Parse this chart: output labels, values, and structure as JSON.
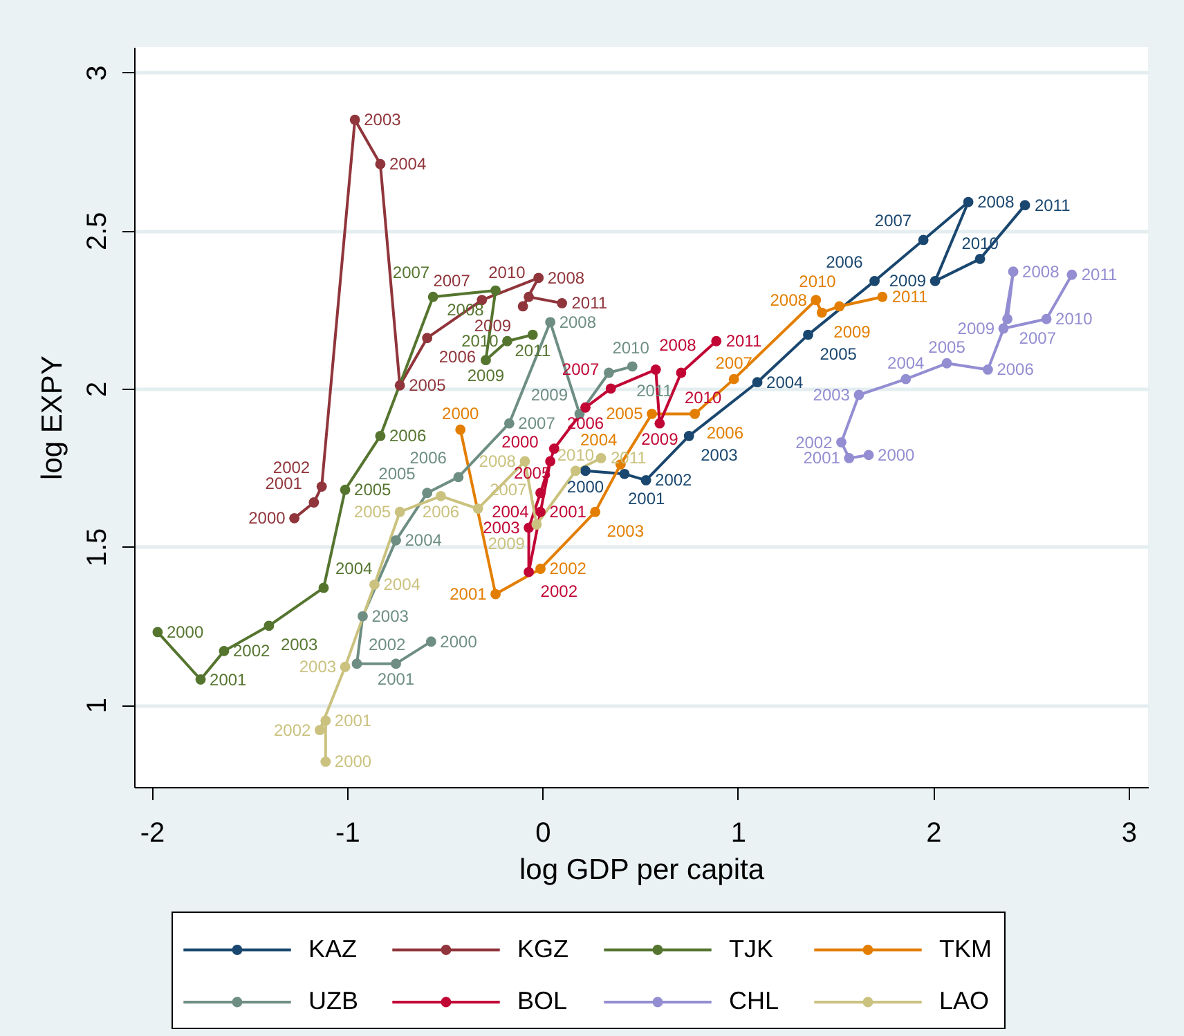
{
  "chart_data": {
    "type": "line",
    "xlabel": "log GDP per capita",
    "ylabel": "log EXPY",
    "xlim": [
      -2.09,
      3.1
    ],
    "ylim": [
      0.74,
      3.08
    ],
    "xticks": [
      -2,
      -1,
      0,
      1,
      2,
      3
    ],
    "yticks": [
      1,
      1.5,
      2,
      2.5,
      3
    ],
    "grid": "y",
    "legend": "bottom",
    "marker": "circle",
    "line_style": "solid",
    "series": [
      {
        "name": "KAZ",
        "color": "#1a476f",
        "x": [
          0.22,
          0.42,
          0.53,
          0.75,
          1.1,
          1.36,
          1.7,
          1.95,
          2.18,
          2.01,
          2.24,
          2.47
        ],
        "values": [
          1.74,
          1.73,
          1.71,
          1.85,
          2.02,
          2.17,
          2.34,
          2.47,
          2.59,
          2.34,
          2.41,
          2.58
        ]
      },
      {
        "name": "KGZ",
        "color": "#90353b",
        "x": [
          -1.27,
          -1.17,
          -1.13,
          -0.96,
          -0.83,
          -0.73,
          -0.59,
          -0.31,
          -0.02,
          -0.1,
          -0.07,
          0.1
        ],
        "values": [
          1.59,
          1.64,
          1.69,
          2.85,
          2.71,
          2.01,
          2.16,
          2.28,
          2.35,
          2.26,
          2.29,
          2.27
        ]
      },
      {
        "name": "TJK",
        "color": "#55752f",
        "x": [
          -1.97,
          -1.75,
          -1.63,
          -1.4,
          -1.12,
          -1.01,
          -0.83,
          -0.56,
          -0.24,
          -0.29,
          -0.18,
          -0.05
        ],
        "values": [
          1.23,
          1.08,
          1.17,
          1.25,
          1.37,
          1.68,
          1.85,
          2.29,
          2.31,
          2.09,
          2.15,
          2.17
        ]
      },
      {
        "name": "TKM",
        "color": "#e37e00",
        "x": [
          -0.42,
          -0.24,
          -0.01,
          0.27,
          0.4,
          0.56,
          0.78,
          0.98,
          1.4,
          1.43,
          1.52,
          1.74
        ],
        "values": [
          1.87,
          1.35,
          1.43,
          1.61,
          1.76,
          1.92,
          1.92,
          2.03,
          2.28,
          2.24,
          2.26,
          2.29
        ]
      },
      {
        "name": "UZB",
        "color": "#6e8e84",
        "x": [
          -0.57,
          -0.75,
          -0.95,
          -0.92,
          -0.75,
          -0.59,
          -0.43,
          -0.17,
          0.04,
          0.19,
          0.34,
          0.46
        ],
        "values": [
          1.2,
          1.13,
          1.13,
          1.28,
          1.52,
          1.67,
          1.72,
          1.89,
          2.21,
          1.92,
          2.05,
          2.07
        ]
      },
      {
        "name": "BOL",
        "color": "#c10534",
        "x": [
          0.04,
          -0.01,
          -0.07,
          -0.07,
          -0.01,
          0.06,
          0.22,
          0.35,
          0.58,
          0.6,
          0.71,
          0.89
        ],
        "values": [
          1.77,
          1.61,
          1.42,
          1.56,
          1.67,
          1.81,
          1.94,
          2.0,
          2.06,
          1.89,
          2.05,
          2.15
        ]
      },
      {
        "name": "CHL",
        "color": "#938dd2",
        "x": [
          1.67,
          1.57,
          1.53,
          1.62,
          1.86,
          2.07,
          2.28,
          2.38,
          2.41,
          2.36,
          2.58,
          2.71
        ],
        "values": [
          1.79,
          1.78,
          1.83,
          1.98,
          2.03,
          2.08,
          2.06,
          2.22,
          2.37,
          2.19,
          2.22,
          2.36
        ]
      },
      {
        "name": "LAO",
        "color": "#cac27e",
        "x": [
          -1.11,
          -1.11,
          -1.14,
          -1.01,
          -0.86,
          -0.73,
          -0.52,
          -0.33,
          -0.09,
          -0.03,
          0.17,
          0.3
        ],
        "values": [
          0.82,
          0.95,
          0.92,
          1.12,
          1.38,
          1.61,
          1.66,
          1.62,
          1.77,
          1.57,
          1.74,
          1.78
        ]
      }
    ],
    "annotations": [
      {
        "text": "2000",
        "x": 0.22,
        "y": 1.74
      },
      {
        "text": "2001",
        "x": 0.42,
        "y": 1.73
      },
      {
        "text": "2002",
        "x": 0.53,
        "y": 1.71
      },
      {
        "text": "2003",
        "x": 0.75,
        "y": 1.85
      },
      {
        "text": "2004",
        "x": 1.1,
        "y": 2.02
      },
      {
        "text": "2005",
        "x": 1.36,
        "y": 2.17
      },
      {
        "text": "2006",
        "x": 1.7,
        "y": 2.34
      },
      {
        "text": "2007",
        "x": 1.95,
        "y": 2.47
      },
      {
        "text": "2008",
        "x": 2.18,
        "y": 2.59
      },
      {
        "text": "2009",
        "x": 2.01,
        "y": 2.34
      },
      {
        "text": "2010",
        "x": 2.24,
        "y": 2.41
      },
      {
        "text": "2011",
        "x": 2.47,
        "y": 2.58
      },
      {
        "text": "2000",
        "x": -1.27,
        "y": 1.59
      },
      {
        "text": "2001",
        "x": -1.17,
        "y": 1.64
      },
      {
        "text": "2002",
        "x": -1.13,
        "y": 1.69
      },
      {
        "text": "2003",
        "x": -0.96,
        "y": 2.85
      },
      {
        "text": "2004",
        "x": -0.83,
        "y": 2.71
      },
      {
        "text": "2005",
        "x": -0.73,
        "y": 2.01
      },
      {
        "text": "2006",
        "x": -0.59,
        "y": 2.16
      },
      {
        "text": "2007",
        "x": -0.31,
        "y": 2.28
      },
      {
        "text": "2008",
        "x": -0.02,
        "y": 2.35
      },
      {
        "text": "2009",
        "x": -0.1,
        "y": 2.26
      },
      {
        "text": "2010",
        "x": -0.07,
        "y": 2.29
      },
      {
        "text": "2011",
        "x": 0.1,
        "y": 2.27
      },
      {
        "text": "2000",
        "x": -1.97,
        "y": 1.23
      },
      {
        "text": "2001",
        "x": -1.75,
        "y": 1.08
      },
      {
        "text": "2002",
        "x": -1.63,
        "y": 1.17
      },
      {
        "text": "2003",
        "x": -1.4,
        "y": 1.25
      },
      {
        "text": "2004",
        "x": -1.12,
        "y": 1.37
      },
      {
        "text": "2005",
        "x": -1.01,
        "y": 1.68
      },
      {
        "text": "2006",
        "x": -0.83,
        "y": 1.85
      },
      {
        "text": "2007",
        "x": -0.56,
        "y": 2.29
      },
      {
        "text": "2008",
        "x": -0.24,
        "y": 2.31
      },
      {
        "text": "2009",
        "x": -0.29,
        "y": 2.09
      },
      {
        "text": "2010",
        "x": -0.18,
        "y": 2.15
      },
      {
        "text": "2011",
        "x": -0.05,
        "y": 2.17
      },
      {
        "text": "2000",
        "x": -0.42,
        "y": 1.87
      },
      {
        "text": "2001",
        "x": -0.24,
        "y": 1.35
      },
      {
        "text": "2002",
        "x": -0.01,
        "y": 1.43
      },
      {
        "text": "2003",
        "x": 0.27,
        "y": 1.61
      },
      {
        "text": "2004",
        "x": 0.4,
        "y": 1.76
      },
      {
        "text": "2005",
        "x": 0.56,
        "y": 1.92
      },
      {
        "text": "2006",
        "x": 0.78,
        "y": 1.92
      },
      {
        "text": "2007",
        "x": 0.98,
        "y": 2.03
      },
      {
        "text": "2008",
        "x": 1.4,
        "y": 2.28
      },
      {
        "text": "2009",
        "x": 1.43,
        "y": 2.24
      },
      {
        "text": "2010",
        "x": 1.52,
        "y": 2.26
      },
      {
        "text": "2011",
        "x": 1.74,
        "y": 2.29
      },
      {
        "text": "2000",
        "x": -0.57,
        "y": 1.2
      },
      {
        "text": "2001",
        "x": -0.75,
        "y": 1.13
      },
      {
        "text": "2002",
        "x": -0.95,
        "y": 1.13
      },
      {
        "text": "2003",
        "x": -0.92,
        "y": 1.28
      },
      {
        "text": "2004",
        "x": -0.75,
        "y": 1.52
      },
      {
        "text": "2005",
        "x": -0.59,
        "y": 1.67
      },
      {
        "text": "2006",
        "x": -0.43,
        "y": 1.72
      },
      {
        "text": "2007",
        "x": -0.17,
        "y": 1.89
      },
      {
        "text": "2008",
        "x": 0.04,
        "y": 2.21
      },
      {
        "text": "2009",
        "x": 0.19,
        "y": 1.92
      },
      {
        "text": "2010",
        "x": 0.34,
        "y": 2.05
      },
      {
        "text": "2011",
        "x": 0.46,
        "y": 2.07
      },
      {
        "text": "2000",
        "x": 0.04,
        "y": 1.77
      },
      {
        "text": "2001",
        "x": -0.01,
        "y": 1.61
      },
      {
        "text": "2002",
        "x": -0.07,
        "y": 1.42
      },
      {
        "text": "2003",
        "x": -0.07,
        "y": 1.56
      },
      {
        "text": "2004",
        "x": -0.01,
        "y": 1.67
      },
      {
        "text": "2005",
        "x": 0.06,
        "y": 1.81
      },
      {
        "text": "2006",
        "x": 0.22,
        "y": 1.94
      },
      {
        "text": "2007",
        "x": 0.35,
        "y": 2.0
      },
      {
        "text": "2008",
        "x": 0.58,
        "y": 2.06
      },
      {
        "text": "2009",
        "x": 0.6,
        "y": 1.89
      },
      {
        "text": "2010",
        "x": 0.71,
        "y": 2.05
      },
      {
        "text": "2011",
        "x": 0.89,
        "y": 2.15
      },
      {
        "text": "2000",
        "x": 1.67,
        "y": 1.79
      },
      {
        "text": "2001",
        "x": 1.57,
        "y": 1.78
      },
      {
        "text": "2002",
        "x": 1.53,
        "y": 1.83
      },
      {
        "text": "2003",
        "x": 1.62,
        "y": 1.98
      },
      {
        "text": "2004",
        "x": 1.86,
        "y": 2.03
      },
      {
        "text": "2005",
        "x": 2.07,
        "y": 2.08
      },
      {
        "text": "2006",
        "x": 2.28,
        "y": 2.06
      },
      {
        "text": "2007",
        "x": 2.38,
        "y": 2.22
      },
      {
        "text": "2008",
        "x": 2.41,
        "y": 2.37
      },
      {
        "text": "2009",
        "x": 2.36,
        "y": 2.19
      },
      {
        "text": "2010",
        "x": 2.58,
        "y": 2.22
      },
      {
        "text": "2011",
        "x": 2.71,
        "y": 2.36
      },
      {
        "text": "2000",
        "x": -1.11,
        "y": 0.82
      },
      {
        "text": "2001",
        "x": -1.11,
        "y": 0.95
      },
      {
        "text": "2002",
        "x": -1.14,
        "y": 0.92
      },
      {
        "text": "2003",
        "x": -1.01,
        "y": 1.12
      },
      {
        "text": "2004",
        "x": -0.86,
        "y": 1.38
      },
      {
        "text": "2005",
        "x": -0.73,
        "y": 1.61
      },
      {
        "text": "2006",
        "x": -0.52,
        "y": 1.66
      },
      {
        "text": "2007",
        "x": -0.33,
        "y": 1.62
      },
      {
        "text": "2008",
        "x": -0.09,
        "y": 1.77
      },
      {
        "text": "2009",
        "x": -0.03,
        "y": 1.57
      },
      {
        "text": "2010",
        "x": 0.17,
        "y": 1.74
      },
      {
        "text": "2011",
        "x": 0.3,
        "y": 1.78
      }
    ]
  }
}
